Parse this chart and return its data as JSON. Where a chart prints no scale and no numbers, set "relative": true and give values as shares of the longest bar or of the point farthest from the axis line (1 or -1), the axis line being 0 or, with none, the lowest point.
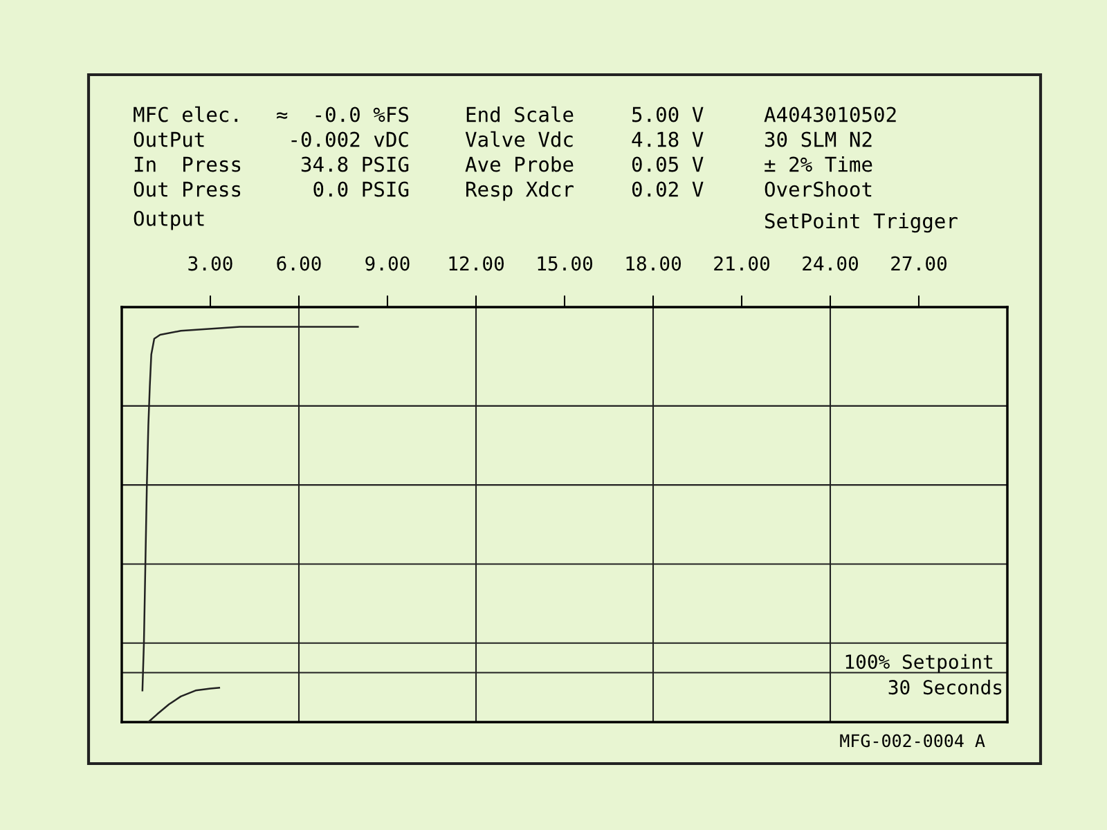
{
  "chart_data": {
    "type": "line",
    "relative": true,
    "ylabel": "Output",
    "xlim": [
      0,
      30
    ],
    "xticks": [
      {
        "value": 3,
        "label": "3.00"
      },
      {
        "value": 6,
        "label": "6.00"
      },
      {
        "value": 9,
        "label": "9.00"
      },
      {
        "value": 12,
        "label": "12.00"
      },
      {
        "value": 15,
        "label": "15.00"
      },
      {
        "value": 18,
        "label": "18.00"
      },
      {
        "value": 21,
        "label": "21.00"
      },
      {
        "value": 24,
        "label": "24.00"
      },
      {
        "value": 27,
        "label": "27.00"
      }
    ],
    "series": [
      {
        "color": "#222222",
        "x": [
          0.7,
          0.75,
          0.8,
          0.85,
          0.9,
          0.95,
          1.0,
          1.1,
          1.3,
          2.0,
          4.0,
          8.0
        ],
        "values": [
          0.08,
          0.2,
          0.4,
          0.6,
          0.75,
          0.85,
          0.93,
          0.97,
          0.98,
          0.99,
          1.0,
          1.0
        ]
      },
      {
        "color": "#222222",
        "x": [
          0.9,
          1.2,
          1.6,
          2.0,
          2.5,
          3.0,
          3.3
        ],
        "values": [
          0.0,
          0.02,
          0.045,
          0.065,
          0.08,
          0.085,
          0.087
        ]
      }
    ],
    "grid": false,
    "line_style": "solid",
    "marker": "none",
    "ref_lines": [
      {
        "axis": "x",
        "value": 6,
        "color": "#222222"
      },
      {
        "axis": "x",
        "value": 12,
        "color": "#222222"
      },
      {
        "axis": "x",
        "value": 18,
        "color": "#222222"
      },
      {
        "axis": "x",
        "value": 24,
        "color": "#222222"
      },
      {
        "axis": "y",
        "value": 0.2,
        "color": "#222222"
      },
      {
        "axis": "y",
        "value": 0.4,
        "color": "#222222"
      },
      {
        "axis": "y",
        "value": 0.6,
        "color": "#222222"
      },
      {
        "axis": "y",
        "value": 0.8,
        "color": "#222222"
      },
      {
        "axis": "y",
        "value": 0.125,
        "label": "100% Setpoint",
        "color": "#222222"
      }
    ],
    "annotations": [
      "MFC elec.",
      "OutPut",
      "In  Press",
      "Out Press",
      "≈  -0.0 %FS",
      "-0.002 vDC",
      "34.8 PSIG",
      "0.0 PSIG",
      "End Scale",
      "Valve Vdc",
      "Ave Probe",
      "Resp Xdcr",
      "5.00 V",
      "4.18 V",
      "0.05 V",
      "0.02 V",
      "A4043010502",
      "30 SLM N2",
      "± 2% Time",
      "OverShoot",
      "SetPoint Trigger",
      "30 Seconds",
      "MFG-002-0004 A"
    ]
  }
}
